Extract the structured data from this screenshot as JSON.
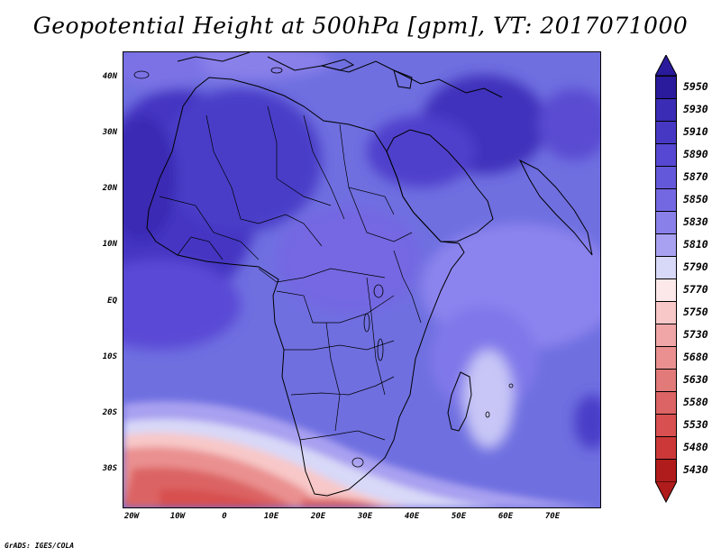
{
  "title": "Geopotential Height at 500hPa [gpm], VT: 2017071000",
  "credit": "GrADS: IGES/COLA",
  "map": {
    "variable": "Geopotential height",
    "level": "500 hPa",
    "units": "gpm",
    "valid_time": "2017071000",
    "lat_labels": [
      "40N",
      "30N",
      "20N",
      "10N",
      "EQ",
      "10S",
      "20S",
      "30S"
    ],
    "lon_labels": [
      "20W",
      "10W",
      "0",
      "10E",
      "20E",
      "30E",
      "40E",
      "50E",
      "60E",
      "70E"
    ],
    "base_color": "#6f6fe0"
  },
  "colorbar": {
    "levels": [
      {
        "label": "5950",
        "color": "#2a1a9c"
      },
      {
        "label": "5930",
        "color": "#3a2cb4"
      },
      {
        "label": "5910",
        "color": "#4738c4"
      },
      {
        "label": "5890",
        "color": "#5648d2"
      },
      {
        "label": "5870",
        "color": "#6458da"
      },
      {
        "label": "5850",
        "color": "#7468e2"
      },
      {
        "label": "5830",
        "color": "#8a80ea"
      },
      {
        "label": "5810",
        "color": "#a8a0f0"
      },
      {
        "label": "5790",
        "color": "#d8d8f8"
      },
      {
        "label": "5770",
        "color": "#fce8e8"
      },
      {
        "label": "5750",
        "color": "#f8c8c8"
      },
      {
        "label": "5730",
        "color": "#f0a6a6"
      },
      {
        "label": "5680",
        "color": "#ea9090"
      },
      {
        "label": "5630",
        "color": "#e27a7a"
      },
      {
        "label": "5580",
        "color": "#dc6464"
      },
      {
        "label": "5530",
        "color": "#d85050"
      },
      {
        "label": "5480",
        "color": "#cc3838"
      },
      {
        "label": "5430",
        "color": "#b01c1c"
      }
    ]
  }
}
